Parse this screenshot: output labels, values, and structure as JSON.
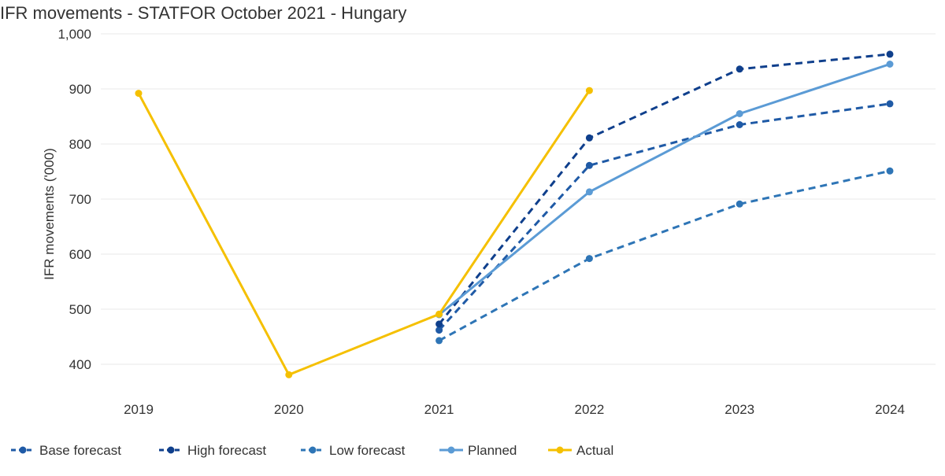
{
  "chart_data": {
    "type": "line",
    "title": "IFR movements - STATFOR October 2021 - Hungary",
    "xlabel": "",
    "ylabel": "IFR movements ('000)",
    "categories": [
      "2019",
      "2020",
      "2021",
      "2022",
      "2023",
      "2024"
    ],
    "yticks": [
      "400",
      "500",
      "600",
      "700",
      "800",
      "900",
      "1,000"
    ],
    "ylim": [
      360,
      1000
    ],
    "grid": true,
    "legend_position": "bottom-left",
    "series": [
      {
        "name": "Base forecast",
        "color": "#1f5aa6",
        "style": "dashed",
        "values": [
          null,
          null,
          462,
          761,
          835,
          873
        ]
      },
      {
        "name": "High forecast",
        "color": "#0f3f8c",
        "style": "dashed",
        "values": [
          null,
          null,
          473,
          811,
          936,
          963
        ]
      },
      {
        "name": "Low forecast",
        "color": "#2e75b6",
        "style": "dashed",
        "values": [
          null,
          null,
          443,
          592,
          691,
          751
        ]
      },
      {
        "name": "Planned",
        "color": "#5b9bd5",
        "style": "solid",
        "values": [
          null,
          null,
          490,
          713,
          855,
          945
        ]
      },
      {
        "name": "Actual",
        "color": "#f5c000",
        "style": "solid",
        "values": [
          892,
          381,
          491,
          897,
          null,
          null
        ]
      }
    ]
  }
}
